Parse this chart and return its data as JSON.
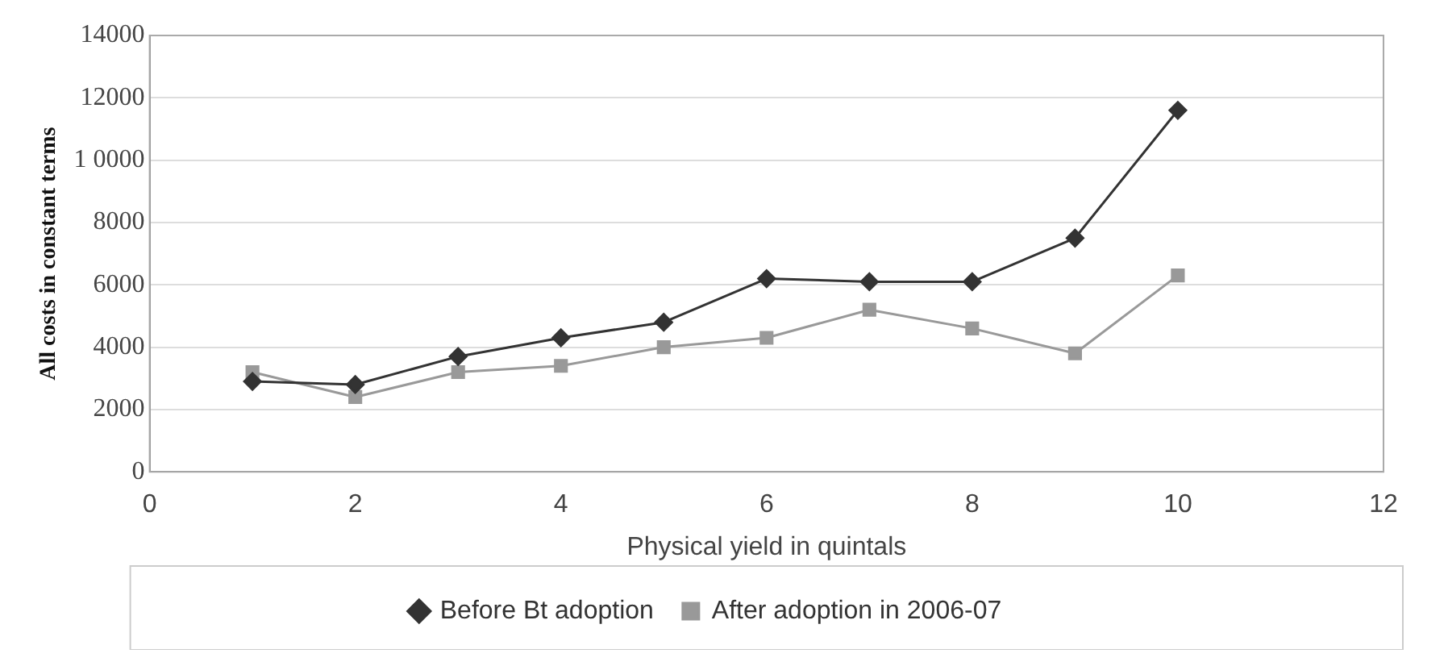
{
  "chart_data": {
    "type": "line",
    "xlabel": "Physical yield in quintals",
    "ylabel": "All costs in constant terms",
    "x": [
      1,
      2,
      3,
      4,
      5,
      6,
      7,
      8,
      9,
      10
    ],
    "series": [
      {
        "name": "Before Bt adoption",
        "color": "#333333",
        "marker": "diamond",
        "values": [
          2900,
          2800,
          3700,
          4300,
          4800,
          6200,
          6100,
          6100,
          7500,
          11600
        ]
      },
      {
        "name": "After adoption in 2006-07",
        "color": "#999999",
        "marker": "square",
        "values": [
          3200,
          2400,
          3200,
          3400,
          4000,
          4300,
          5200,
          4600,
          3800,
          6300
        ]
      }
    ],
    "xlim": [
      0,
      12
    ],
    "xticks": [
      0,
      2,
      4,
      6,
      8,
      10,
      12
    ],
    "ylim": [
      0,
      14000
    ],
    "yticks": [
      0,
      2000,
      4000,
      6000,
      8000,
      {
        "value": 10000,
        "label": "1 0000"
      },
      12000,
      14000
    ],
    "grid": "y",
    "legend": "bottom",
    "line_style": "solid"
  }
}
